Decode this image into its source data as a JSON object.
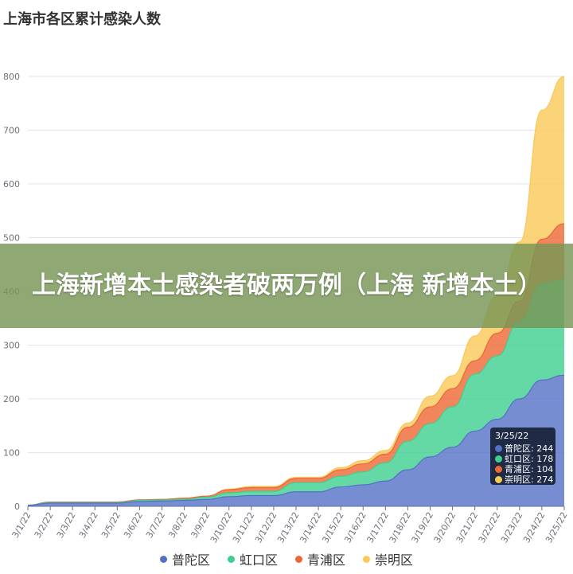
{
  "chart_data": {
    "type": "area",
    "stacked": true,
    "title": "上海市各区累计感染人数",
    "xlabel": "",
    "ylabel": "",
    "ylim": [
      0,
      800
    ],
    "yticks": [
      0,
      100,
      200,
      300,
      400,
      500,
      600,
      700,
      800
    ],
    "grid": true,
    "legend_position": "bottom",
    "categories": [
      "3/1/22",
      "3/2/22",
      "3/3/22",
      "3/4/22",
      "3/5/22",
      "3/6/22",
      "3/7/22",
      "3/8/22",
      "3/9/22",
      "3/10/22",
      "3/11/22",
      "3/12/22",
      "3/13/22",
      "3/14/22",
      "3/15/22",
      "3/16/22",
      "3/17/22",
      "3/18/22",
      "3/19/22",
      "3/20/22",
      "3/21/22",
      "3/22/22",
      "3/23/22",
      "3/24/22",
      "3/25/22"
    ],
    "series": [
      {
        "name": "普陀区",
        "color": "#5470c6",
        "values": [
          2,
          6,
          6,
          6,
          6,
          9,
          10,
          11,
          13,
          18,
          20,
          20,
          27,
          27,
          36,
          40,
          47,
          68,
          92,
          110,
          140,
          162,
          200,
          235,
          244
        ]
      },
      {
        "name": "虹口区",
        "color": "#3ecf8e",
        "values": [
          0,
          1,
          1,
          1,
          1,
          2,
          2,
          2,
          4,
          7,
          8,
          8,
          17,
          17,
          20,
          24,
          34,
          53,
          62,
          75,
          106,
          118,
          145,
          180,
          178
        ]
      },
      {
        "name": "青浦区",
        "color": "#ee6633",
        "values": [
          0,
          1,
          1,
          1,
          1,
          1,
          1,
          2,
          2,
          6,
          7,
          7,
          8,
          8,
          12,
          15,
          16,
          26,
          31,
          34,
          25,
          42,
          37,
          82,
          104
        ]
      },
      {
        "name": "崇明区",
        "color": "#fac858",
        "values": [
          0,
          0,
          0,
          0,
          0,
          0,
          0,
          0,
          0,
          1,
          2,
          2,
          2,
          2,
          4,
          6,
          7,
          8,
          20,
          24,
          46,
          70,
          110,
          240,
          274
        ]
      }
    ]
  },
  "banner": {
    "text": "上海新增本土感染者破两万例（上海 新增本土）"
  },
  "tooltip": {
    "date": "3/25/22",
    "rows": [
      {
        "label": "普陀区: 244",
        "color": "#5470c6"
      },
      {
        "label": "虹口区: 178",
        "color": "#3ecf8e"
      },
      {
        "label": "青浦区: 104",
        "color": "#ee6633"
      },
      {
        "label": "崇明区: 274",
        "color": "#fac858"
      }
    ]
  }
}
